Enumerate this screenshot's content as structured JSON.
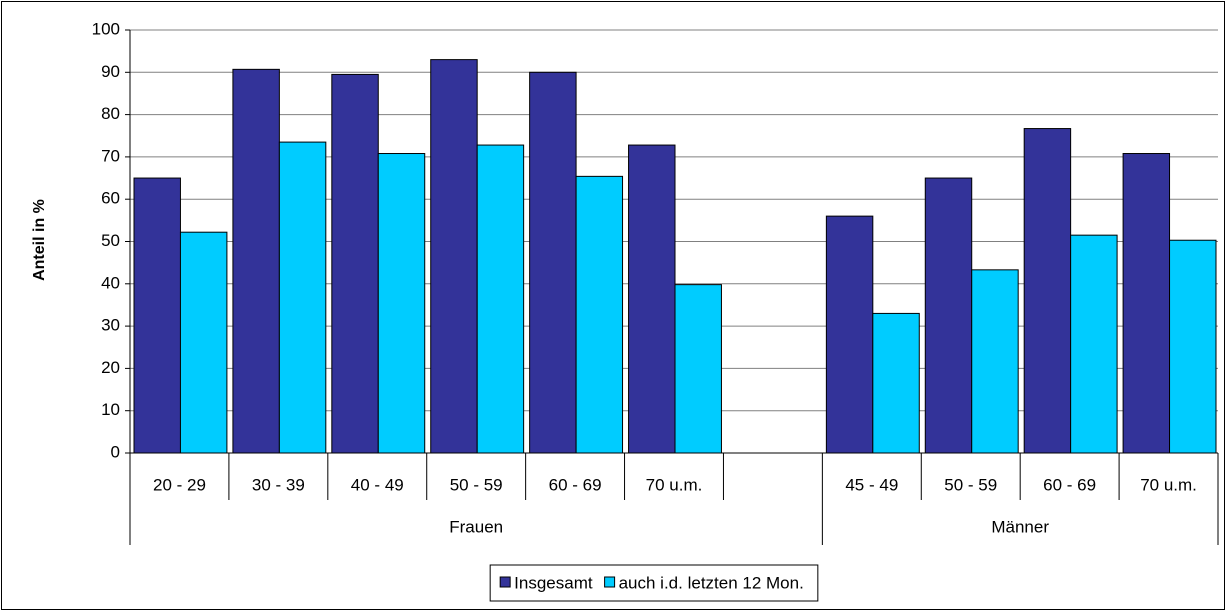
{
  "chart_data": {
    "type": "bar",
    "categories": [
      "20 - 29",
      "30 - 39",
      "40 - 49",
      "50 - 59",
      "60 - 69",
      "70 u.m.",
      null,
      "45 - 49",
      "50 - 59",
      "60 - 69",
      "70 u.m."
    ],
    "groups": [
      {
        "name": "Frauen",
        "count": 7
      },
      {
        "name": "Männer",
        "count": 4
      }
    ],
    "series": [
      {
        "name": "Insgesamt",
        "color": "#333399",
        "values": [
          65,
          90.7,
          89.5,
          93,
          90,
          72.8,
          null,
          56,
          65,
          76.7,
          70.8
        ]
      },
      {
        "name": "auch i.d. letzten 12 Mon.",
        "color": "#00ccff",
        "values": [
          52.2,
          73.5,
          70.8,
          72.8,
          65.4,
          39.8,
          null,
          33,
          43.3,
          51.5,
          50.3
        ]
      }
    ],
    "y_label": "Anteil in %",
    "ylim": [
      0,
      100
    ],
    "yticks": [
      0,
      10,
      20,
      30,
      40,
      50,
      60,
      70,
      80,
      90,
      100
    ],
    "grid": true,
    "legend": "bottom"
  }
}
